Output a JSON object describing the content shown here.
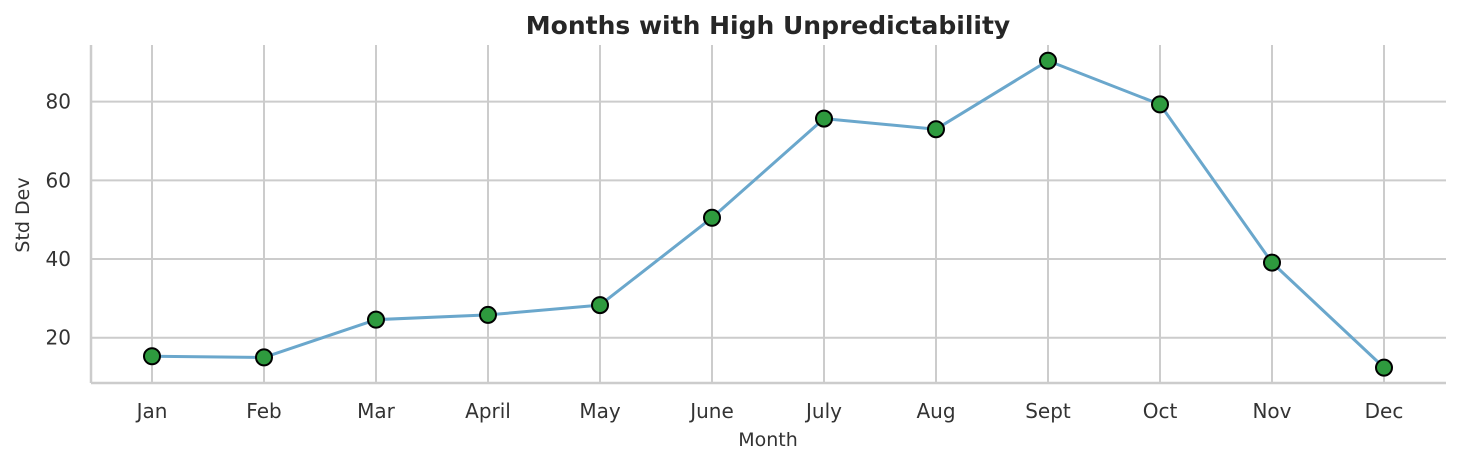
{
  "chart_data": {
    "type": "line",
    "title": "Months with High Unpredictability",
    "xlabel": "Month",
    "ylabel": "Std Dev",
    "categories": [
      "Jan",
      "Feb",
      "Mar",
      "April",
      "May",
      "June",
      "July",
      "Aug",
      "Sept",
      "Oct",
      "Nov",
      "Dec"
    ],
    "series": [
      {
        "values": [
          15.3,
          15.0,
          24.6,
          25.8,
          28.3,
          50.5,
          75.7,
          73.0,
          90.4,
          79.3,
          39.1,
          12.4
        ]
      }
    ],
    "ylim": [
      8.5,
      94.4
    ],
    "yticks": [
      20,
      40,
      60,
      80
    ],
    "grid": true,
    "legend": "none",
    "colors": {
      "line": "#6aa7cc",
      "marker_fill": "#2e9a3e",
      "marker_edge": "#000000"
    }
  }
}
